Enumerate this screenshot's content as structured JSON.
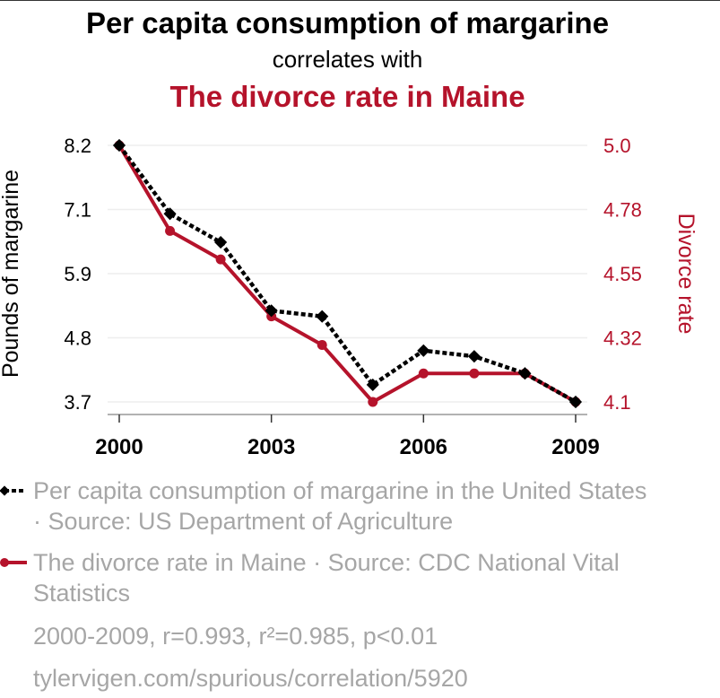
{
  "header": {
    "title": "Per capita consumption of margarine",
    "subtitle": "correlates with",
    "title2": "The divorce rate in Maine"
  },
  "chart_data": {
    "type": "line",
    "x": [
      2000,
      2001,
      2002,
      2003,
      2004,
      2005,
      2006,
      2007,
      2008,
      2009
    ],
    "xticks": [
      "2000",
      "2003",
      "2006",
      "2009"
    ],
    "ylabel_left": "Pounds of margarine",
    "ylabel_right": "Divorce rate",
    "yticks_left": [
      "8.2",
      "7.1",
      "5.9",
      "4.8",
      "3.7"
    ],
    "yticks_right": [
      "5.0",
      "4.78",
      "4.55",
      "4.32",
      "4.1"
    ],
    "ylim_left": [
      3.7,
      8.2
    ],
    "ylim_right": [
      4.1,
      5.0
    ],
    "grid": true,
    "series": [
      {
        "name": "Per capita consumption of margarine in the United States",
        "axis": "left",
        "color": "#000000",
        "style": "dashed",
        "marker": "diamond",
        "values": [
          8.2,
          7.0,
          6.5,
          5.3,
          5.2,
          4.0,
          4.6,
          4.5,
          4.2,
          3.7
        ]
      },
      {
        "name": "The divorce rate in Maine",
        "axis": "right",
        "color": "#b5132b",
        "style": "solid",
        "marker": "circle",
        "values": [
          5.0,
          4.7,
          4.6,
          4.4,
          4.3,
          4.1,
          4.2,
          4.2,
          4.2,
          4.1
        ]
      }
    ]
  },
  "legend": {
    "item1": "Per capita consumption of margarine in the United States · Source: US Department of Agriculture",
    "item2": "The divorce rate in Maine · Source: CDC National Vital Statistics",
    "stats": "2000-2009, r=0.993, r²=0.985, p<0.01",
    "url": "tylervigen.com/spurious/correlation/5920"
  },
  "colors": {
    "accent": "#b5132b",
    "text": "#000000",
    "muted": "#a6a6a6"
  }
}
